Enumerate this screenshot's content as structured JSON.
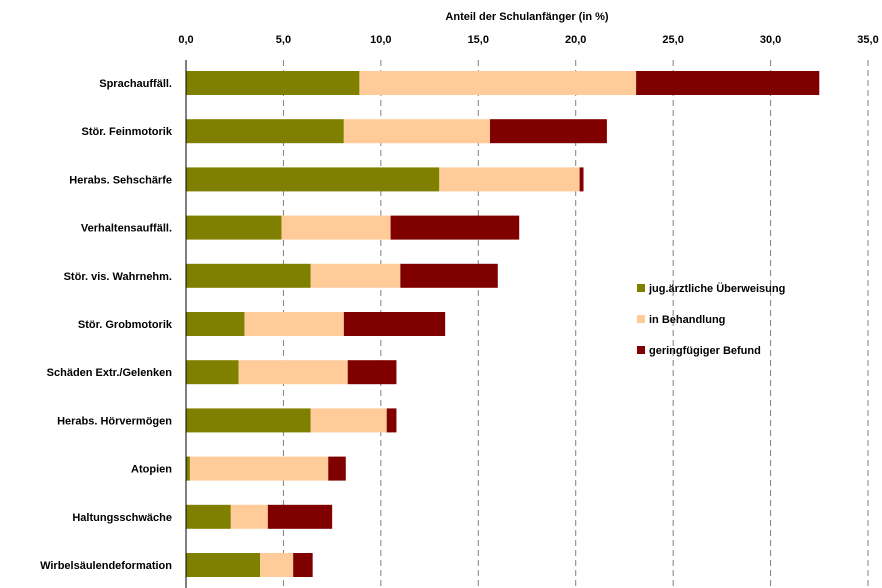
{
  "chart_data": {
    "type": "bar",
    "orientation": "horizontal",
    "stacked": true,
    "title": "",
    "xlabel": "Anteil der Schulanfänger (in %)",
    "ylabel": "",
    "xlim": [
      0,
      35
    ],
    "x_ticks": [
      "0,0",
      "5,0",
      "10,0",
      "15,0",
      "20,0",
      "25,0",
      "30,0",
      "35,0"
    ],
    "x_tick_values": [
      0,
      5,
      10,
      15,
      20,
      25,
      30,
      35
    ],
    "grid": "vertical-dashed",
    "legend_position": "right",
    "categories": [
      "Sprachauffäll.",
      "Stör. Feinmotorik",
      "Herabs. Sehschärfe",
      "Verhaltensauffäll.",
      "Stör. vis. Wahrnehm.",
      "Stör. Grobmotorik",
      "Schäden Extr./Gelenken",
      "Herabs. Hörvermögen",
      "Atopien",
      "Haltungsschwäche",
      "Wirbelsäulendeformation"
    ],
    "series": [
      {
        "name": "jug.ärztliche Überweisung",
        "color": "#808000",
        "values": [
          8.9,
          8.1,
          13.0,
          4.9,
          6.4,
          3.0,
          2.7,
          6.4,
          0.2,
          2.3,
          3.8
        ]
      },
      {
        "name": "in Behandlung",
        "color": "#FFCC99",
        "values": [
          14.2,
          7.5,
          7.2,
          5.6,
          4.6,
          5.1,
          5.6,
          3.9,
          7.1,
          1.9,
          1.7
        ]
      },
      {
        "name": "geringfügiger Befund",
        "color": "#800000",
        "values": [
          9.4,
          6.0,
          0.2,
          6.6,
          5.0,
          5.2,
          2.5,
          0.5,
          0.9,
          3.3,
          1.0
        ]
      }
    ]
  }
}
